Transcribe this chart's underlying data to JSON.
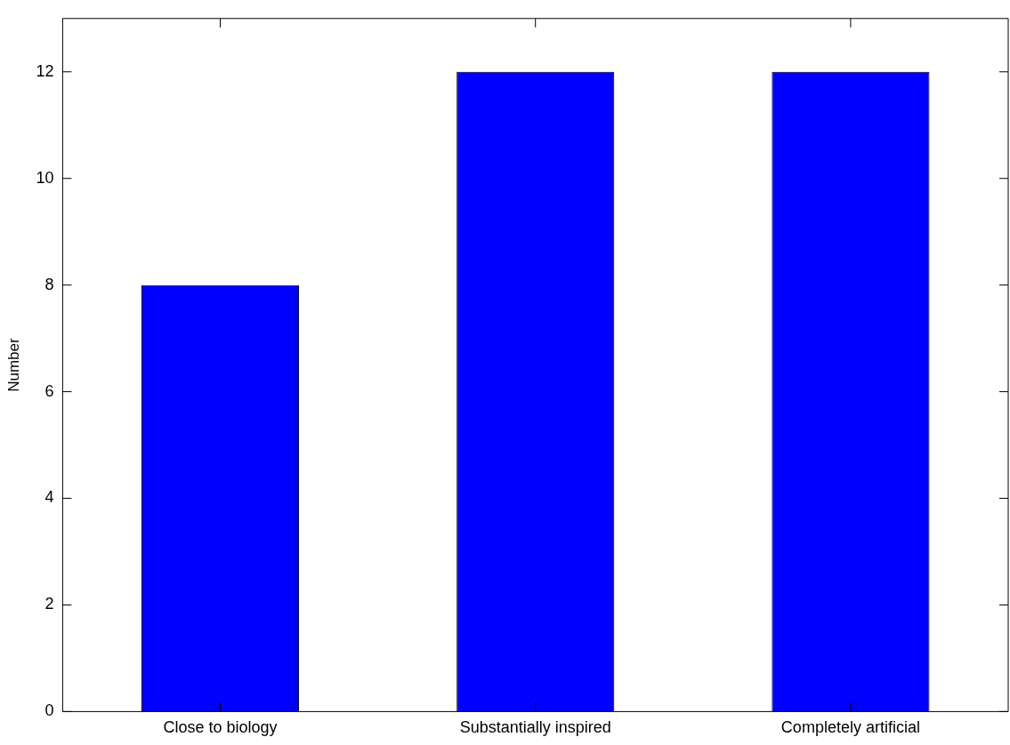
{
  "chart_data": {
    "type": "bar",
    "ylabel": "Number",
    "categories": [
      "Close to biology",
      "Substantially inspired",
      "Completely artificial"
    ],
    "values": [
      8,
      12,
      12
    ],
    "color": "#0000ff",
    "ylim": [
      0,
      13
    ],
    "yticks": [
      0,
      2,
      4,
      6,
      8,
      10,
      12
    ],
    "grid": false,
    "legend": false
  }
}
